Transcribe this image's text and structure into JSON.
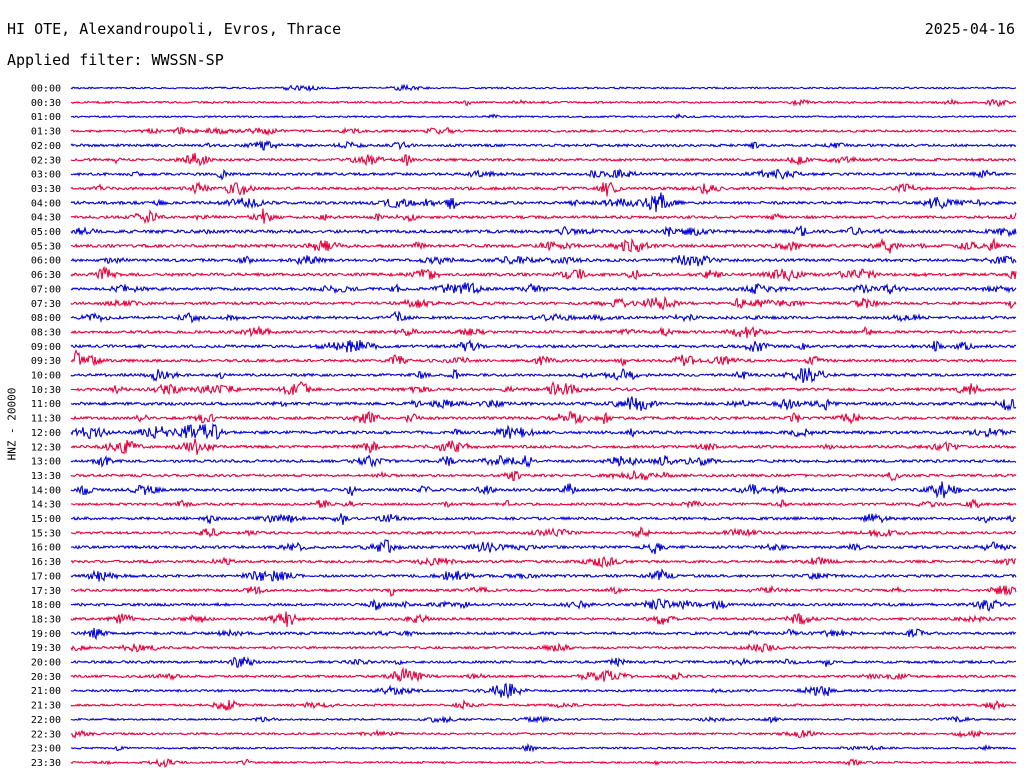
{
  "header": {
    "station": "HI OTE, Alexandroupoli, Evros, Thrace",
    "date": "2025-04-16",
    "filter": "Applied filter: WWSSN-SP",
    "channel": "HNZ - 20000"
  },
  "colors": {
    "even_trace": "#0000d8",
    "odd_trace": "#e8003c",
    "text": "#000000",
    "background": "#ffffff"
  },
  "chart_data": {
    "type": "line",
    "title": "HI OTE, Alexandroupoli, Evros, Thrace",
    "ylabel": "HNZ - 20000",
    "xlabel": "",
    "grid": false,
    "legend": "none",
    "trace_colors_alternate": [
      "#0000d8",
      "#e8003c"
    ],
    "rows": [
      "00:00",
      "00:30",
      "01:00",
      "01:30",
      "02:00",
      "02:30",
      "03:00",
      "03:30",
      "04:00",
      "04:30",
      "05:00",
      "05:30",
      "06:00",
      "06:30",
      "07:00",
      "07:30",
      "08:00",
      "08:30",
      "09:00",
      "09:30",
      "10:00",
      "10:30",
      "11:00",
      "11:30",
      "12:00",
      "12:30",
      "13:00",
      "13:30",
      "14:00",
      "14:30",
      "15:00",
      "15:30",
      "16:00",
      "16:30",
      "17:00",
      "17:30",
      "18:00",
      "18:30",
      "19:00",
      "19:30",
      "20:00",
      "20:30",
      "21:00",
      "21:30",
      "22:00",
      "22:30",
      "23:00",
      "23:30"
    ],
    "activity_level": [
      0.15,
      0.25,
      0.15,
      0.35,
      0.45,
      0.45,
      0.5,
      0.55,
      0.55,
      0.5,
      0.65,
      0.6,
      0.55,
      0.6,
      0.55,
      0.5,
      0.55,
      0.5,
      0.55,
      0.5,
      0.5,
      0.55,
      0.6,
      0.55,
      0.6,
      0.55,
      0.5,
      0.45,
      0.55,
      0.45,
      0.5,
      0.45,
      0.55,
      0.45,
      0.5,
      0.45,
      0.5,
      0.45,
      0.5,
      0.35,
      0.45,
      0.4,
      0.35,
      0.3,
      0.2,
      0.25,
      0.2,
      0.2
    ]
  }
}
